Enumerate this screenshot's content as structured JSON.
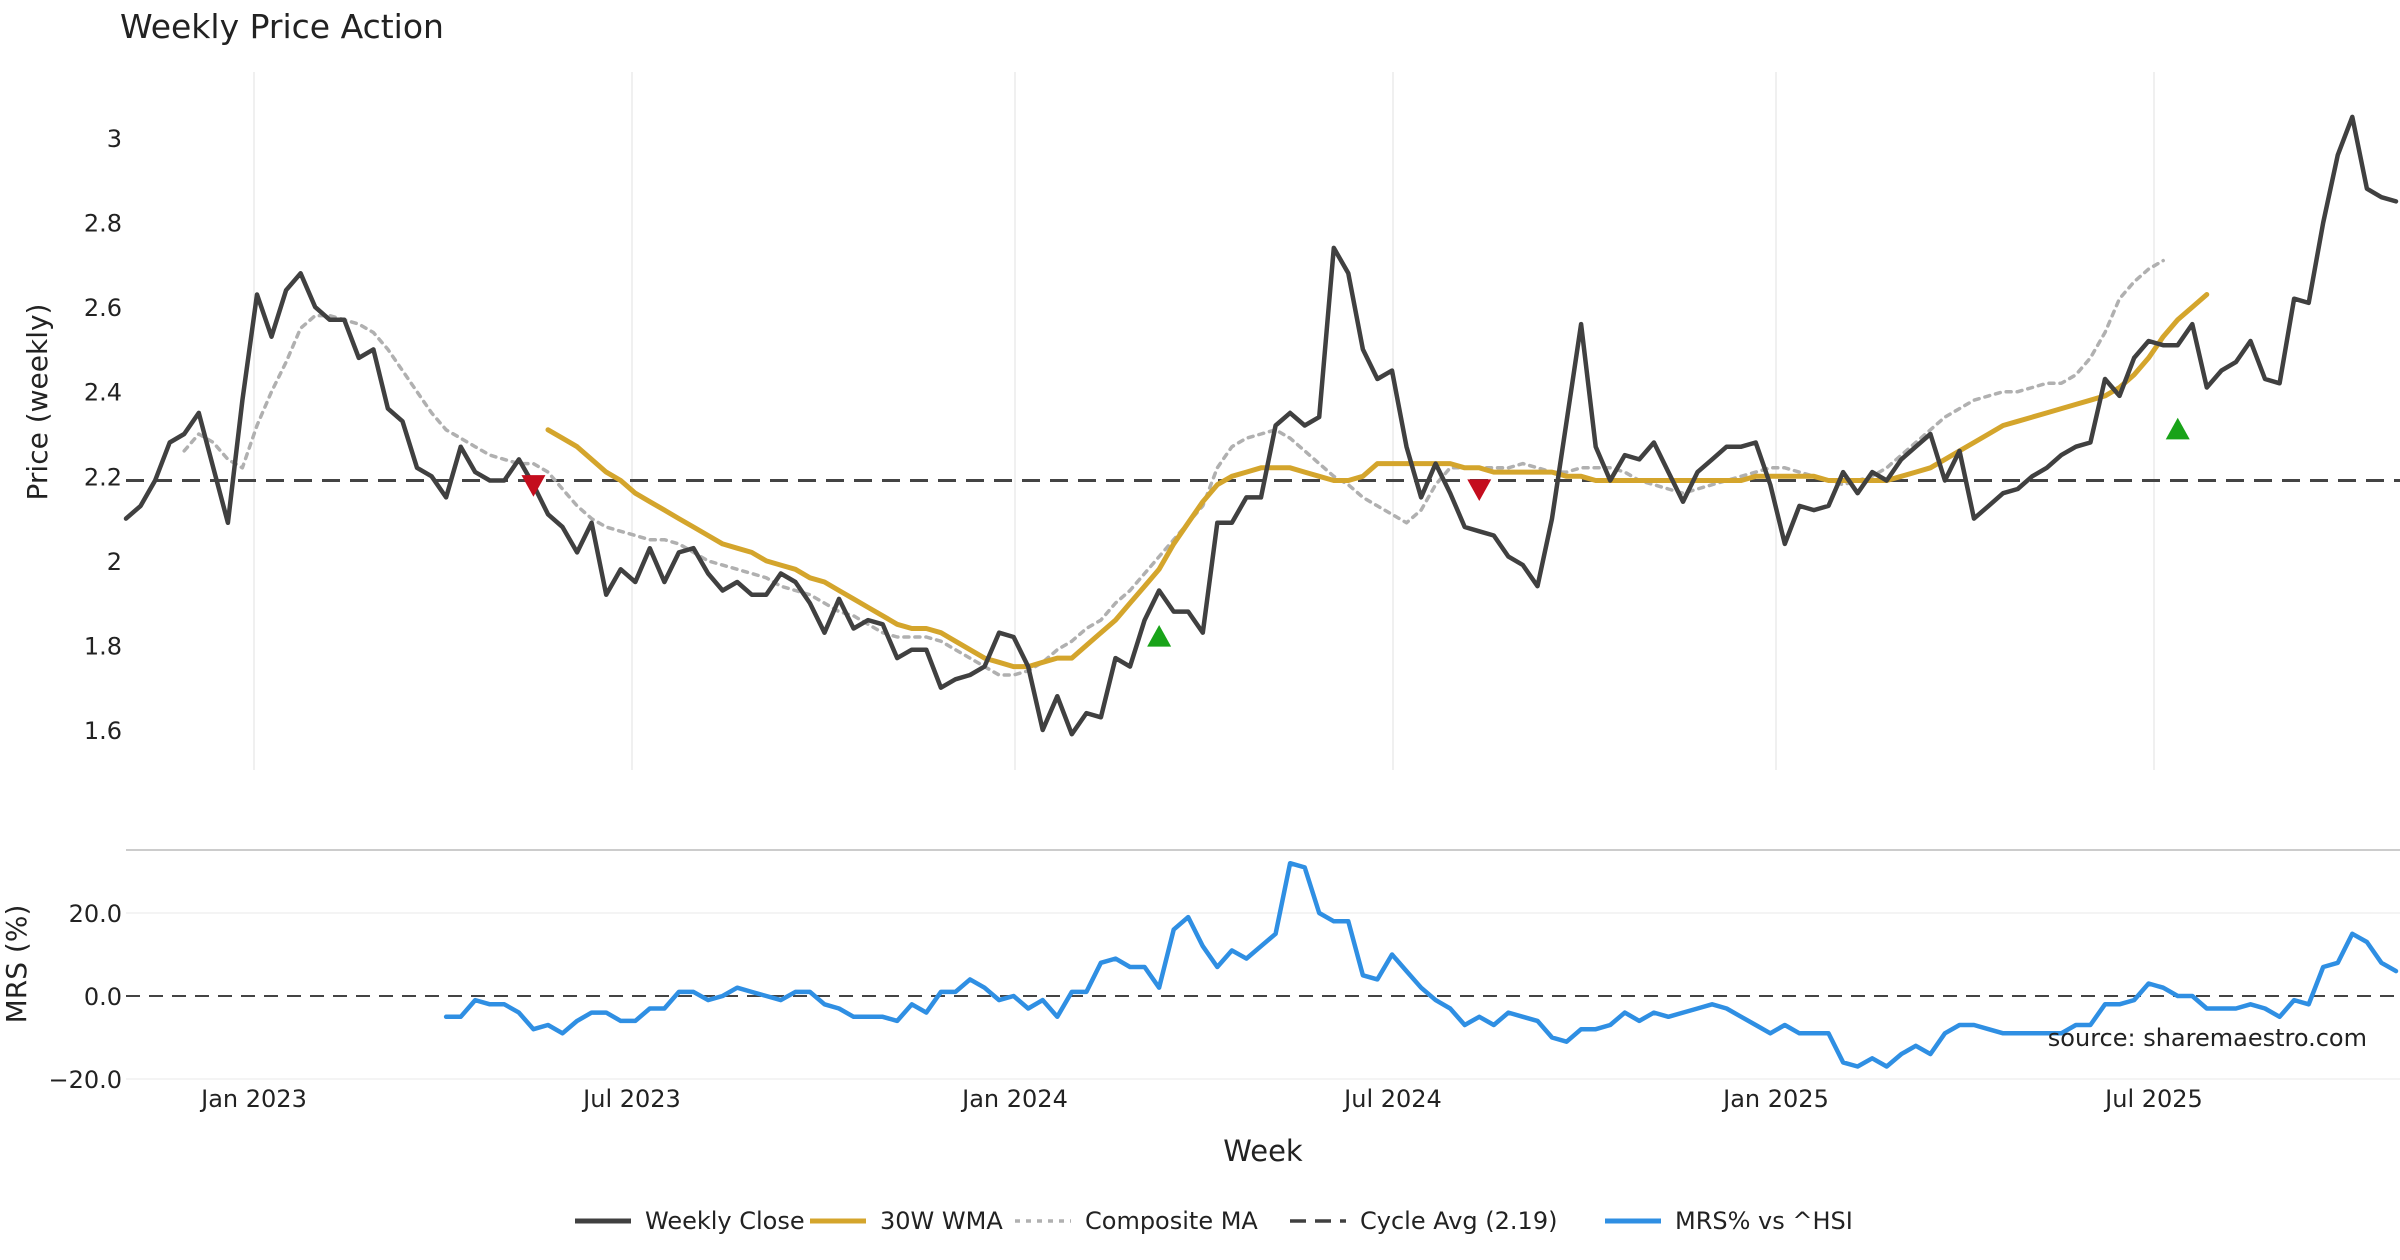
{
  "chart_data": [
    {
      "type": "line",
      "title": "Weekly Price Action",
      "ylabel": "Price (weekly)",
      "xlabel": "Week",
      "x_ticks": [
        "Jan 2023",
        "Jul 2023",
        "Jan 2024",
        "Jul 2024",
        "Jan 2025",
        "Jul 2025"
      ],
      "y_ticks": [
        "1.6",
        "1.8",
        "2",
        "2.2",
        "2.4",
        "2.6",
        "2.8",
        "3"
      ],
      "ylim": [
        1.5,
        3.15
      ],
      "grid": "vertical",
      "cycle_avg": 2.19,
      "series": [
        {
          "name": "Weekly Close",
          "color": "#404040",
          "values": [
            2.1,
            2.13,
            2.19,
            2.28,
            2.3,
            2.35,
            2.22,
            2.09,
            2.38,
            2.63,
            2.53,
            2.64,
            2.68,
            2.6,
            2.57,
            2.57,
            2.48,
            2.5,
            2.36,
            2.33,
            2.22,
            2.2,
            2.15,
            2.27,
            2.21,
            2.19,
            2.19,
            2.24,
            2.18,
            2.11,
            2.08,
            2.02,
            2.09,
            1.92,
            1.98,
            1.95,
            2.03,
            1.95,
            2.02,
            2.03,
            1.97,
            1.93,
            1.95,
            1.92,
            1.92,
            1.97,
            1.95,
            1.9,
            1.83,
            1.91,
            1.84,
            1.86,
            1.85,
            1.77,
            1.79,
            1.79,
            1.7,
            1.72,
            1.73,
            1.75,
            1.83,
            1.82,
            1.75,
            1.6,
            1.68,
            1.59,
            1.64,
            1.63,
            1.77,
            1.75,
            1.86,
            1.93,
            1.88,
            1.88,
            1.83,
            2.09,
            2.09,
            2.15,
            2.15,
            2.32,
            2.35,
            2.32,
            2.34,
            2.74,
            2.68,
            2.5,
            2.43,
            2.45,
            2.27,
            2.15,
            2.23,
            2.16,
            2.08,
            2.07,
            2.06,
            2.01,
            1.99,
            1.94,
            2.1,
            2.33,
            2.56,
            2.27,
            2.19,
            2.25,
            2.24,
            2.28,
            2.21,
            2.14,
            2.21,
            2.24,
            2.27,
            2.27,
            2.28,
            2.18,
            2.04,
            2.13,
            2.12,
            2.13,
            2.21,
            2.16,
            2.21,
            2.19,
            2.24,
            2.27,
            2.3,
            2.19,
            2.26,
            2.1,
            2.13,
            2.16,
            2.17,
            2.2,
            2.22,
            2.25,
            2.27,
            2.28,
            2.43,
            2.39,
            2.48,
            2.52,
            2.51,
            2.51,
            2.56,
            2.41,
            2.45,
            2.47,
            2.52,
            2.43,
            2.42,
            2.62,
            2.61,
            2.8,
            2.96,
            3.05,
            2.88,
            2.86,
            2.85
          ]
        },
        {
          "name": "30W WMA",
          "color": "#d4a52c",
          "start_index": 29,
          "values": [
            2.31,
            2.29,
            2.27,
            2.24,
            2.21,
            2.19,
            2.16,
            2.14,
            2.12,
            2.1,
            2.08,
            2.06,
            2.04,
            2.03,
            2.02,
            2.0,
            1.99,
            1.98,
            1.96,
            1.95,
            1.93,
            1.91,
            1.89,
            1.87,
            1.85,
            1.84,
            1.84,
            1.83,
            1.81,
            1.79,
            1.77,
            1.76,
            1.75,
            1.75,
            1.76,
            1.77,
            1.77,
            1.8,
            1.83,
            1.86,
            1.9,
            1.94,
            1.98,
            2.04,
            2.09,
            2.14,
            2.18,
            2.2,
            2.21,
            2.22,
            2.22,
            2.22,
            2.21,
            2.2,
            2.19,
            2.19,
            2.2,
            2.23,
            2.23,
            2.23,
            2.23,
            2.23,
            2.23,
            2.22,
            2.22,
            2.21,
            2.21,
            2.21,
            2.21,
            2.21,
            2.2,
            2.2,
            2.19,
            2.19,
            2.19,
            2.19,
            2.19,
            2.19,
            2.19,
            2.19,
            2.19,
            2.19,
            2.19,
            2.2,
            2.2,
            2.2,
            2.2,
            2.2,
            2.19,
            2.19,
            2.19,
            2.19,
            2.19,
            2.2,
            2.21,
            2.22,
            2.24,
            2.26,
            2.28,
            2.3,
            2.32,
            2.33,
            2.34,
            2.35,
            2.36,
            2.37,
            2.38,
            2.39,
            2.41,
            2.44,
            2.48,
            2.53,
            2.57,
            2.6,
            2.63
          ]
        },
        {
          "name": "Composite MA",
          "color": "#b0b0b0",
          "start_index": 4,
          "values": [
            2.26,
            2.3,
            2.28,
            2.24,
            2.22,
            2.32,
            2.4,
            2.47,
            2.55,
            2.58,
            2.58,
            2.57,
            2.56,
            2.54,
            2.5,
            2.45,
            2.4,
            2.35,
            2.31,
            2.29,
            2.27,
            2.25,
            2.24,
            2.23,
            2.23,
            2.21,
            2.17,
            2.13,
            2.1,
            2.08,
            2.07,
            2.06,
            2.05,
            2.05,
            2.04,
            2.02,
            2.0,
            1.99,
            1.98,
            1.97,
            1.96,
            1.94,
            1.93,
            1.92,
            1.9,
            1.88,
            1.87,
            1.85,
            1.83,
            1.82,
            1.82,
            1.82,
            1.81,
            1.79,
            1.77,
            1.75,
            1.73,
            1.73,
            1.74,
            1.76,
            1.79,
            1.81,
            1.84,
            1.86,
            1.9,
            1.93,
            1.97,
            2.01,
            2.05,
            2.09,
            2.13,
            2.22,
            2.27,
            2.29,
            2.3,
            2.31,
            2.29,
            2.26,
            2.23,
            2.2,
            2.18,
            2.15,
            2.13,
            2.11,
            2.09,
            2.12,
            2.18,
            2.22,
            2.22,
            2.22,
            2.22,
            2.22,
            2.23,
            2.22,
            2.21,
            2.21,
            2.22,
            2.22,
            2.22,
            2.21,
            2.19,
            2.18,
            2.17,
            2.16,
            2.17,
            2.18,
            2.19,
            2.2,
            2.21,
            2.22,
            2.22,
            2.21,
            2.2,
            2.19,
            2.18,
            2.19,
            2.2,
            2.22,
            2.25,
            2.28,
            2.31,
            2.34,
            2.36,
            2.38,
            2.39,
            2.4,
            2.4,
            2.41,
            2.42,
            2.42,
            2.44,
            2.48,
            2.54,
            2.62,
            2.66,
            2.69,
            2.71
          ]
        }
      ],
      "markers": [
        {
          "type": "sell",
          "index": 28,
          "value": 2.18,
          "color": "#c40d1e"
        },
        {
          "type": "buy",
          "index": 71,
          "value": 1.82,
          "color": "#19a319"
        },
        {
          "type": "sell",
          "index": 93,
          "value": 2.17,
          "color": "#c40d1e"
        },
        {
          "type": "buy",
          "index": 141,
          "value": 2.31,
          "color": "#19a319"
        }
      ]
    },
    {
      "type": "line",
      "ylabel": "MRS (%)",
      "y_ticks": [
        "−20.0",
        "0.0",
        "20.0"
      ],
      "ylim": [
        -20,
        34
      ],
      "zero_line": 0.0,
      "series": [
        {
          "name": "MRS% vs ^HSI",
          "color": "#2f8fe3",
          "start_index": 22,
          "values": [
            -5,
            -5,
            -1,
            -2,
            -2,
            -4,
            -8,
            -7,
            -9,
            -6,
            -4,
            -4,
            -6,
            -6,
            -3,
            -3,
            1,
            1,
            -1,
            0,
            2,
            1,
            0,
            -1,
            1,
            1,
            -2,
            -3,
            -5,
            -5,
            -5,
            -6,
            -2,
            -4,
            1,
            1,
            4,
            2,
            -1,
            0,
            -3,
            -1,
            -5,
            1,
            1,
            8,
            9,
            7,
            7,
            2,
            16,
            19,
            12,
            7,
            11,
            9,
            12,
            15,
            32,
            31,
            20,
            18,
            18,
            5,
            4,
            10,
            6,
            2,
            -1,
            -3,
            -7,
            -5,
            -7,
            -4,
            -5,
            -6,
            -10,
            -11,
            -8,
            -8,
            -7,
            -4,
            -6,
            -4,
            -5,
            -4,
            -3,
            -2,
            -3,
            -5,
            -7,
            -9,
            -7,
            -9,
            -9,
            -9,
            -16,
            -17,
            -15,
            -17,
            -14,
            -12,
            -14,
            -9,
            -7,
            -7,
            -8,
            -9,
            -9,
            -9,
            -9,
            -9,
            -7,
            -7,
            -2,
            -2,
            -1,
            3,
            2,
            0,
            0,
            -3,
            -3,
            -3,
            -2,
            -3,
            -5,
            -1,
            -2,
            7,
            8,
            15,
            13,
            8,
            6
          ]
        }
      ]
    }
  ],
  "cycle_label": "Cycle Avg (2.19)",
  "watermark": "source: sharemaestro.com",
  "legend": {
    "placement": "bottom-center",
    "items": [
      {
        "label": "Weekly Close",
        "color": "#404040",
        "style": "solid"
      },
      {
        "label": "30W WMA",
        "color": "#d4a52c",
        "style": "solid"
      },
      {
        "label": "Composite MA",
        "color": "#b0b0b0",
        "style": "dotted"
      },
      {
        "label": "Cycle Avg (2.19)",
        "color": "#404040",
        "style": "dashed"
      },
      {
        "label": "MRS% vs ^HSI",
        "color": "#2f8fe3",
        "style": "solid"
      }
    ]
  }
}
